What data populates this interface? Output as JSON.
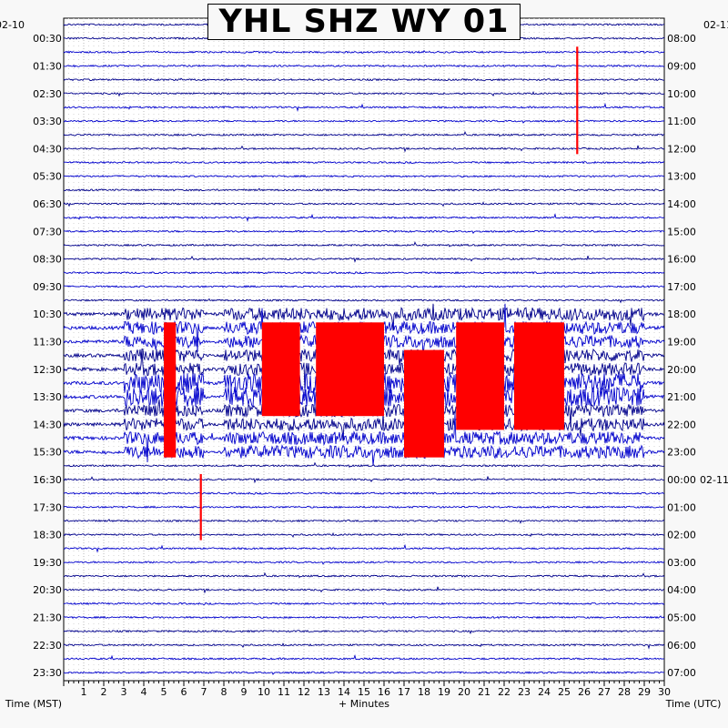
{
  "title": "YHL SHZ WY 01",
  "date_left": "02-10",
  "date_right": "02-11",
  "x_axis_label": "+ Minutes",
  "left_axis_label": "Time (MST)",
  "right_axis_label": "Time (UTC)",
  "colors": {
    "blue": "#0000cc",
    "navy": "#00008b",
    "red": "#ff0000",
    "grid": "#999999"
  },
  "chart_data": {
    "type": "line",
    "title": "YHL SHZ WY 01",
    "xlabel": "+ Minutes",
    "ylabel_left": "Time (MST)",
    "ylabel_right": "Time (UTC)",
    "xlim": [
      0,
      30
    ],
    "x_ticks": [
      1,
      2,
      3,
      4,
      5,
      6,
      7,
      8,
      9,
      10,
      11,
      12,
      13,
      14,
      15,
      16,
      17,
      18,
      19,
      20,
      21,
      22,
      23,
      24,
      25,
      26,
      27,
      28,
      29,
      30
    ],
    "traces_per_hour": 2,
    "trace_count": 48,
    "left_tick_labels": [
      "00:30",
      "01:30",
      "02:30",
      "03:30",
      "04:30",
      "05:30",
      "06:30",
      "07:30",
      "08:30",
      "09:30",
      "10:30",
      "11:30",
      "12:30",
      "13:30",
      "14:30",
      "15:30",
      "16:30",
      "17:30",
      "18:30",
      "19:30",
      "20:30",
      "21:30",
      "22:30",
      "23:30"
    ],
    "right_tick_labels": [
      "08:00",
      "09:00",
      "10:00",
      "11:00",
      "12:00",
      "13:00",
      "14:00",
      "15:00",
      "16:00",
      "17:00",
      "18:00",
      "19:00",
      "20:00",
      "21:00",
      "22:00",
      "23:00",
      "00:00",
      "01:00",
      "02:00",
      "03:00",
      "04:00",
      "05:00",
      "06:00",
      "07:00"
    ],
    "clipped_segments": [
      {
        "start_trace": 22,
        "end_trace": 31,
        "x_start": 5.0,
        "x_end": 5.6
      },
      {
        "start_trace": 33,
        "end_trace": 37,
        "x_start": 6.8,
        "x_end": 6.9
      },
      {
        "start_trace": 22,
        "end_trace": 28,
        "x_start": 9.9,
        "x_end": 11.8
      },
      {
        "start_trace": 22,
        "end_trace": 28,
        "x_start": 12.6,
        "x_end": 16.0
      },
      {
        "start_trace": 24,
        "end_trace": 31,
        "x_start": 17.0,
        "x_end": 19.0
      },
      {
        "start_trace": 22,
        "end_trace": 29,
        "x_start": 19.6,
        "x_end": 22.0
      },
      {
        "start_trace": 22,
        "end_trace": 29,
        "x_start": 22.5,
        "x_end": 25.0
      },
      {
        "start_trace": 2,
        "end_trace": 9,
        "x_start": 25.6,
        "x_end": 25.7
      }
    ]
  }
}
